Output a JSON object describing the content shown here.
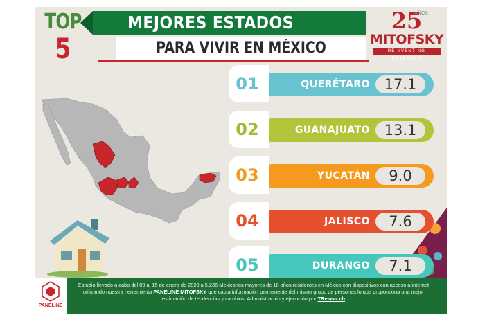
{
  "badge": {
    "top": "TOP",
    "number": "5"
  },
  "title": {
    "line1": "MEJORES ESTADOS",
    "line2": "PARA VIVIR EN MÉXICO"
  },
  "logo": {
    "number": "25",
    "years": "AÑOS",
    "brand": "MITOFSKY",
    "tagline": "REINVENTING RESEARCH"
  },
  "ranking": [
    {
      "rank": "01",
      "state": "QUERÉTARO",
      "score": "17.1",
      "color": "#66c3cf",
      "num_color": "#66c3cf"
    },
    {
      "rank": "02",
      "state": "GUANAJUATO",
      "score": "13.1",
      "color": "#b3c43b",
      "num_color": "#a9b838"
    },
    {
      "rank": "03",
      "state": "YUCATÁN",
      "score": "9.0",
      "color": "#f39a1f",
      "num_color": "#f39a1f"
    },
    {
      "rank": "04",
      "state": "JALISCO",
      "score": "7.6",
      "color": "#e5502e",
      "num_color": "#e5502e"
    },
    {
      "rank": "05",
      "state": "DURANGO",
      "score": "7.1",
      "color": "#47c6bb",
      "num_color": "#47c6bb"
    }
  ],
  "footer": {
    "brand": "PANELINE",
    "text_a": "Estudio llevado a cabo del 09 al 15 de enero de 2020 a 5,236 Mexicanos mayores de 18 años residentes en México con dispositivos con acceso a internet utilizando nuestra herramienta ",
    "text_bold": "PANELINE MITOFSKY",
    "text_b": " que capta información permanente del mismo grupo de personas lo que proporciona una mejor estimación de tendencias y cambios. Administración y ejecución por ",
    "text_link": "TResear.ch"
  },
  "colors": {
    "highlight_states": "#c8262c",
    "map_gray": "#b7b7b7",
    "banner_green": "#147a3c"
  }
}
